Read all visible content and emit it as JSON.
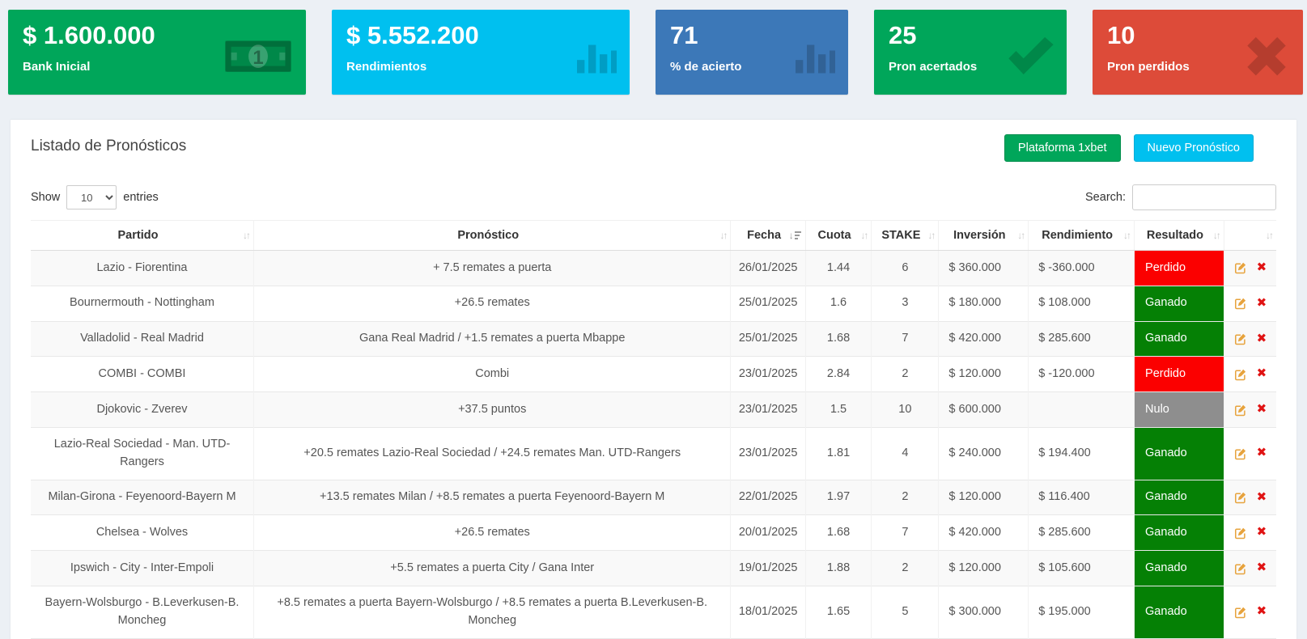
{
  "cards": [
    {
      "value": "$ 1.600.000",
      "label": "Bank Inicial",
      "color": "#00a65a",
      "icon": "money-icon"
    },
    {
      "value": "$ 5.552.200",
      "label": "Rendimientos",
      "color": "#00c0ef",
      "icon": "bar-chart-icon"
    },
    {
      "value": "71",
      "label": "% de acierto",
      "color": "#3c78b8",
      "icon": "bar-chart-icon"
    },
    {
      "value": "25",
      "label": "Pron acertados",
      "color": "#00a65a",
      "icon": "check-icon"
    },
    {
      "value": "10",
      "label": "Pron perdidos",
      "color": "#dd4b39",
      "icon": "close-icon"
    }
  ],
  "panel": {
    "title": "Listado de Pronósticos",
    "platform_button": "Plataforma 1xbet",
    "new_button": "Nuevo Pronóstico"
  },
  "table_controls": {
    "show_label": "Show",
    "entries_label": "entries",
    "page_length": "10",
    "search_label": "Search:",
    "search_value": ""
  },
  "table": {
    "headers": [
      "Partido",
      "Pronóstico",
      "Fecha",
      "Cuota",
      "STAKE",
      "Inversión",
      "Rendimiento",
      "Resultado"
    ],
    "sorted_column": "Fecha",
    "rows": [
      {
        "partido": "Lazio - Fiorentina",
        "pronostico": "+ 7.5 remates a puerta",
        "fecha": "26/01/2025",
        "cuota": "1.44",
        "stake": "6",
        "inversion": "$ 360.000",
        "rendimiento": "$ -360.000",
        "resultado": "Perdido"
      },
      {
        "partido": "Bournermouth - Nottingham",
        "pronostico": "+26.5 remates",
        "fecha": "25/01/2025",
        "cuota": "1.6",
        "stake": "3",
        "inversion": "$ 180.000",
        "rendimiento": "$ 108.000",
        "resultado": "Ganado"
      },
      {
        "partido": "Valladolid - Real Madrid",
        "pronostico": "Gana Real Madrid / +1.5 remates a puerta Mbappe",
        "fecha": "25/01/2025",
        "cuota": "1.68",
        "stake": "7",
        "inversion": "$ 420.000",
        "rendimiento": "$ 285.600",
        "resultado": "Ganado"
      },
      {
        "partido": "COMBI - COMBI",
        "pronostico": "Combi",
        "fecha": "23/01/2025",
        "cuota": "2.84",
        "stake": "2",
        "inversion": "$ 120.000",
        "rendimiento": "$ -120.000",
        "resultado": "Perdido"
      },
      {
        "partido": "Djokovic - Zverev",
        "pronostico": "+37.5 puntos",
        "fecha": "23/01/2025",
        "cuota": "1.5",
        "stake": "10",
        "inversion": "$ 600.000",
        "rendimiento": "",
        "resultado": "Nulo"
      },
      {
        "partido": "Lazio-Real Sociedad - Man. UTD-Rangers",
        "pronostico": "+20.5 remates Lazio-Real Sociedad / +24.5 remates Man. UTD-Rangers",
        "fecha": "23/01/2025",
        "cuota": "1.81",
        "stake": "4",
        "inversion": "$ 240.000",
        "rendimiento": "$ 194.400",
        "resultado": "Ganado"
      },
      {
        "partido": "Milan-Girona - Feyenoord-Bayern M",
        "pronostico": "+13.5 remates Milan / +8.5 remates a puerta Feyenoord-Bayern M",
        "fecha": "22/01/2025",
        "cuota": "1.97",
        "stake": "2",
        "inversion": "$ 120.000",
        "rendimiento": "$ 116.400",
        "resultado": "Ganado"
      },
      {
        "partido": "Chelsea - Wolves",
        "pronostico": "+26.5 remates",
        "fecha": "20/01/2025",
        "cuota": "1.68",
        "stake": "7",
        "inversion": "$ 420.000",
        "rendimiento": "$ 285.600",
        "resultado": "Ganado"
      },
      {
        "partido": "Ipswich - City - Inter-Empoli",
        "pronostico": "+5.5 remates a puerta City / Gana Inter",
        "fecha": "19/01/2025",
        "cuota": "1.88",
        "stake": "2",
        "inversion": "$ 120.000",
        "rendimiento": "$ 105.600",
        "resultado": "Ganado"
      },
      {
        "partido": "Bayern-Wolsburgo - B.Leverkusen-B. Moncheg",
        "pronostico": "+8.5 remates a puerta Bayern-Wolsburgo / +8.5 remates a puerta B.Leverkusen-B. Moncheg",
        "fecha": "18/01/2025",
        "cuota": "1.65",
        "stake": "5",
        "inversion": "$ 300.000",
        "rendimiento": "$ 195.000",
        "resultado": "Ganado"
      }
    ]
  },
  "result_colors": {
    "Ganado": "#058005",
    "Perdido": "#fb0000",
    "Nulo": "#8e8e8e"
  }
}
